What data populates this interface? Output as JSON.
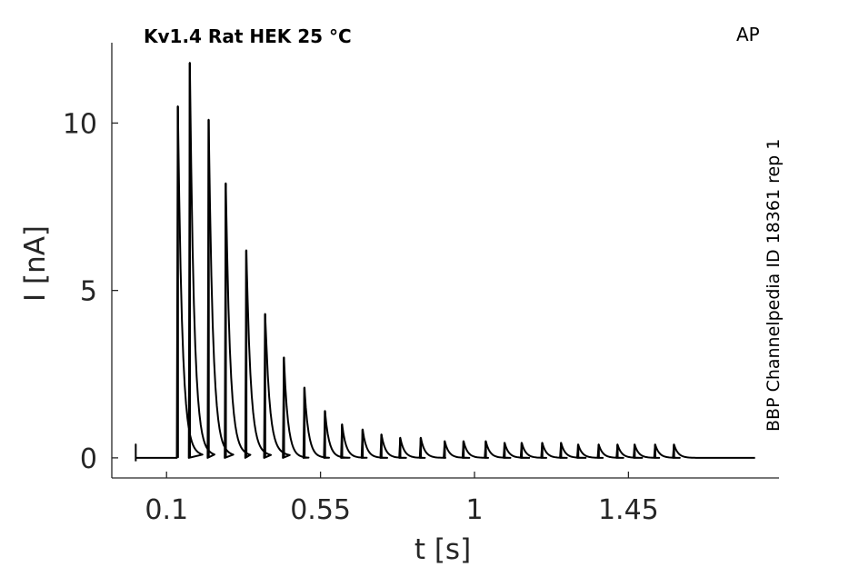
{
  "chart_data": {
    "type": "line",
    "title": "Kv1.4  Rat  HEK  25 °C",
    "protocol_label": "AP",
    "side_label": "BBP Channelpedia ID 18361 rep 1",
    "xlabel": "t [s]",
    "ylabel": "I [nA]",
    "xlim": [
      -0.06,
      1.89
    ],
    "ylim": [
      -0.6,
      12.4
    ],
    "xticks": [
      0.1,
      0.55,
      1,
      1.45
    ],
    "xtick_labels": [
      "0.1",
      "0.55",
      "1",
      "1.45"
    ],
    "yticks": [
      0,
      5,
      10
    ],
    "ytick_labels": [
      "0",
      "5",
      "10"
    ],
    "grid": false,
    "baseline": 0,
    "x_start": 0.01,
    "x_end": 1.82,
    "stimulus_artifact": {
      "x": 0.01,
      "peak": 0.4
    },
    "series": [
      {
        "spikes": [
          {
            "t": 0.13,
            "peak": 10.5
          },
          {
            "t": 0.165,
            "peak": 11.8
          },
          {
            "t": 0.22,
            "peak": 10.1
          },
          {
            "t": 0.27,
            "peak": 8.2
          },
          {
            "t": 0.33,
            "peak": 6.2
          },
          {
            "t": 0.385,
            "peak": 4.3
          },
          {
            "t": 0.44,
            "peak": 3.0
          },
          {
            "t": 0.5,
            "peak": 2.1
          },
          {
            "t": 0.56,
            "peak": 1.4
          },
          {
            "t": 0.61,
            "peak": 1.0
          },
          {
            "t": 0.67,
            "peak": 0.85
          },
          {
            "t": 0.725,
            "peak": 0.7
          },
          {
            "t": 0.78,
            "peak": 0.6
          },
          {
            "t": 0.84,
            "peak": 0.6
          },
          {
            "t": 0.91,
            "peak": 0.5
          },
          {
            "t": 0.965,
            "peak": 0.5
          },
          {
            "t": 1.03,
            "peak": 0.5
          },
          {
            "t": 1.085,
            "peak": 0.45
          },
          {
            "t": 1.135,
            "peak": 0.45
          },
          {
            "t": 1.195,
            "peak": 0.45
          },
          {
            "t": 1.25,
            "peak": 0.45
          },
          {
            "t": 1.3,
            "peak": 0.4
          },
          {
            "t": 1.36,
            "peak": 0.4
          },
          {
            "t": 1.415,
            "peak": 0.4
          },
          {
            "t": 1.465,
            "peak": 0.4
          },
          {
            "t": 1.525,
            "peak": 0.4
          },
          {
            "t": 1.58,
            "peak": 0.4
          }
        ]
      }
    ]
  }
}
